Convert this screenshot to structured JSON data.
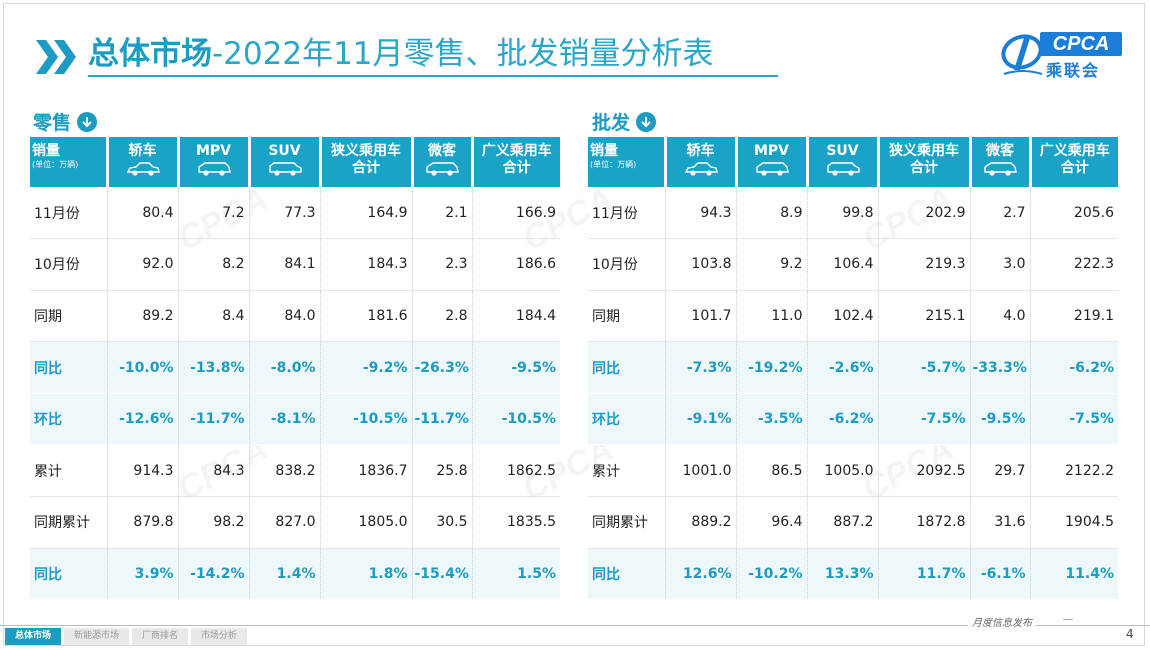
{
  "header": {
    "title_strong": "总体市场",
    "title_rest": "-2022年11月零售、批发销量分析表",
    "logo_text": "CPCA",
    "logo_cn": "乘联会"
  },
  "retail": {
    "label": "零售",
    "columns": [
      {
        "l1": "销量",
        "unit": "(单位：万辆)"
      },
      {
        "l1": "轿车",
        "icon": "sedan-icon"
      },
      {
        "l1": "MPV",
        "icon": "mpv-icon"
      },
      {
        "l1": "SUV",
        "icon": "suv-icon"
      },
      {
        "l1": "狭义乘用车",
        "l2": "合计"
      },
      {
        "l1": "微客",
        "icon": "minivan-icon"
      },
      {
        "l1": "广义乘用车",
        "l2": "合计"
      }
    ],
    "rows": [
      {
        "label": "11月份",
        "values": [
          "80.4",
          "7.2",
          "77.3",
          "164.9",
          "2.1",
          "166.9"
        ]
      },
      {
        "label": "10月份",
        "values": [
          "92.0",
          "8.2",
          "84.1",
          "184.3",
          "2.3",
          "186.6"
        ]
      },
      {
        "label": "同期",
        "values": [
          "89.2",
          "8.4",
          "84.0",
          "181.6",
          "2.8",
          "184.4"
        ]
      },
      {
        "label": "同比",
        "values": [
          "-10.0%",
          "-13.8%",
          "-8.0%",
          "-9.2%",
          "-26.3%",
          "-9.5%"
        ],
        "highlight": true
      },
      {
        "label": "环比",
        "values": [
          "-12.6%",
          "-11.7%",
          "-8.1%",
          "-10.5%",
          "-11.7%",
          "-10.5%"
        ],
        "highlight": true
      },
      {
        "label": "累计",
        "values": [
          "914.3",
          "84.3",
          "838.2",
          "1836.7",
          "25.8",
          "1862.5"
        ]
      },
      {
        "label": "同期累计",
        "values": [
          "879.8",
          "98.2",
          "827.0",
          "1805.0",
          "30.5",
          "1835.5"
        ]
      },
      {
        "label": "同比",
        "values": [
          "3.9%",
          "-14.2%",
          "1.4%",
          "1.8%",
          "-15.4%",
          "1.5%"
        ],
        "highlight": true
      }
    ]
  },
  "wholesale": {
    "label": "批发",
    "columns": [
      {
        "l1": "销量",
        "unit": "(单位：万辆)"
      },
      {
        "l1": "轿车",
        "icon": "sedan-icon"
      },
      {
        "l1": "MPV",
        "icon": "mpv-icon"
      },
      {
        "l1": "SUV",
        "icon": "suv-icon"
      },
      {
        "l1": "狭义乘用车",
        "l2": "合计"
      },
      {
        "l1": "微客",
        "icon": "minivan-icon"
      },
      {
        "l1": "广义乘用车",
        "l2": "合计"
      }
    ],
    "rows": [
      {
        "label": "11月份",
        "values": [
          "94.3",
          "8.9",
          "99.8",
          "202.9",
          "2.7",
          "205.6"
        ]
      },
      {
        "label": "10月份",
        "values": [
          "103.8",
          "9.2",
          "106.4",
          "219.3",
          "3.0",
          "222.3"
        ]
      },
      {
        "label": "同期",
        "values": [
          "101.7",
          "11.0",
          "102.4",
          "215.1",
          "4.0",
          "219.1"
        ]
      },
      {
        "label": "同比",
        "values": [
          "-7.3%",
          "-19.2%",
          "-2.6%",
          "-5.7%",
          "-33.3%",
          "-6.2%"
        ],
        "highlight": true
      },
      {
        "label": "环比",
        "values": [
          "-9.1%",
          "-3.5%",
          "-6.2%",
          "-7.5%",
          "-9.5%",
          "-7.5%"
        ],
        "highlight": true
      },
      {
        "label": "累计",
        "values": [
          "1001.0",
          "86.5",
          "1005.0",
          "2092.5",
          "29.7",
          "2122.2"
        ]
      },
      {
        "label": "同期累计",
        "values": [
          "889.2",
          "96.4",
          "887.2",
          "1872.8",
          "31.6",
          "1904.5"
        ]
      },
      {
        "label": "同比",
        "values": [
          "12.6%",
          "-10.2%",
          "13.3%",
          "11.7%",
          "-6.1%",
          "11.4%"
        ],
        "highlight": true
      }
    ]
  },
  "footer": {
    "tabs": [
      {
        "label": "总体市场",
        "active": true
      },
      {
        "label": "新能源市场",
        "active": false
      },
      {
        "label": "厂商排名",
        "active": false
      },
      {
        "label": "市场分析",
        "active": false
      }
    ],
    "caption": "月度信息发布",
    "page_number": "4"
  },
  "colors": {
    "accent": "#1d9bc2",
    "header_bg": "#1aa3c7",
    "highlight_bg": "#eef8fb"
  }
}
